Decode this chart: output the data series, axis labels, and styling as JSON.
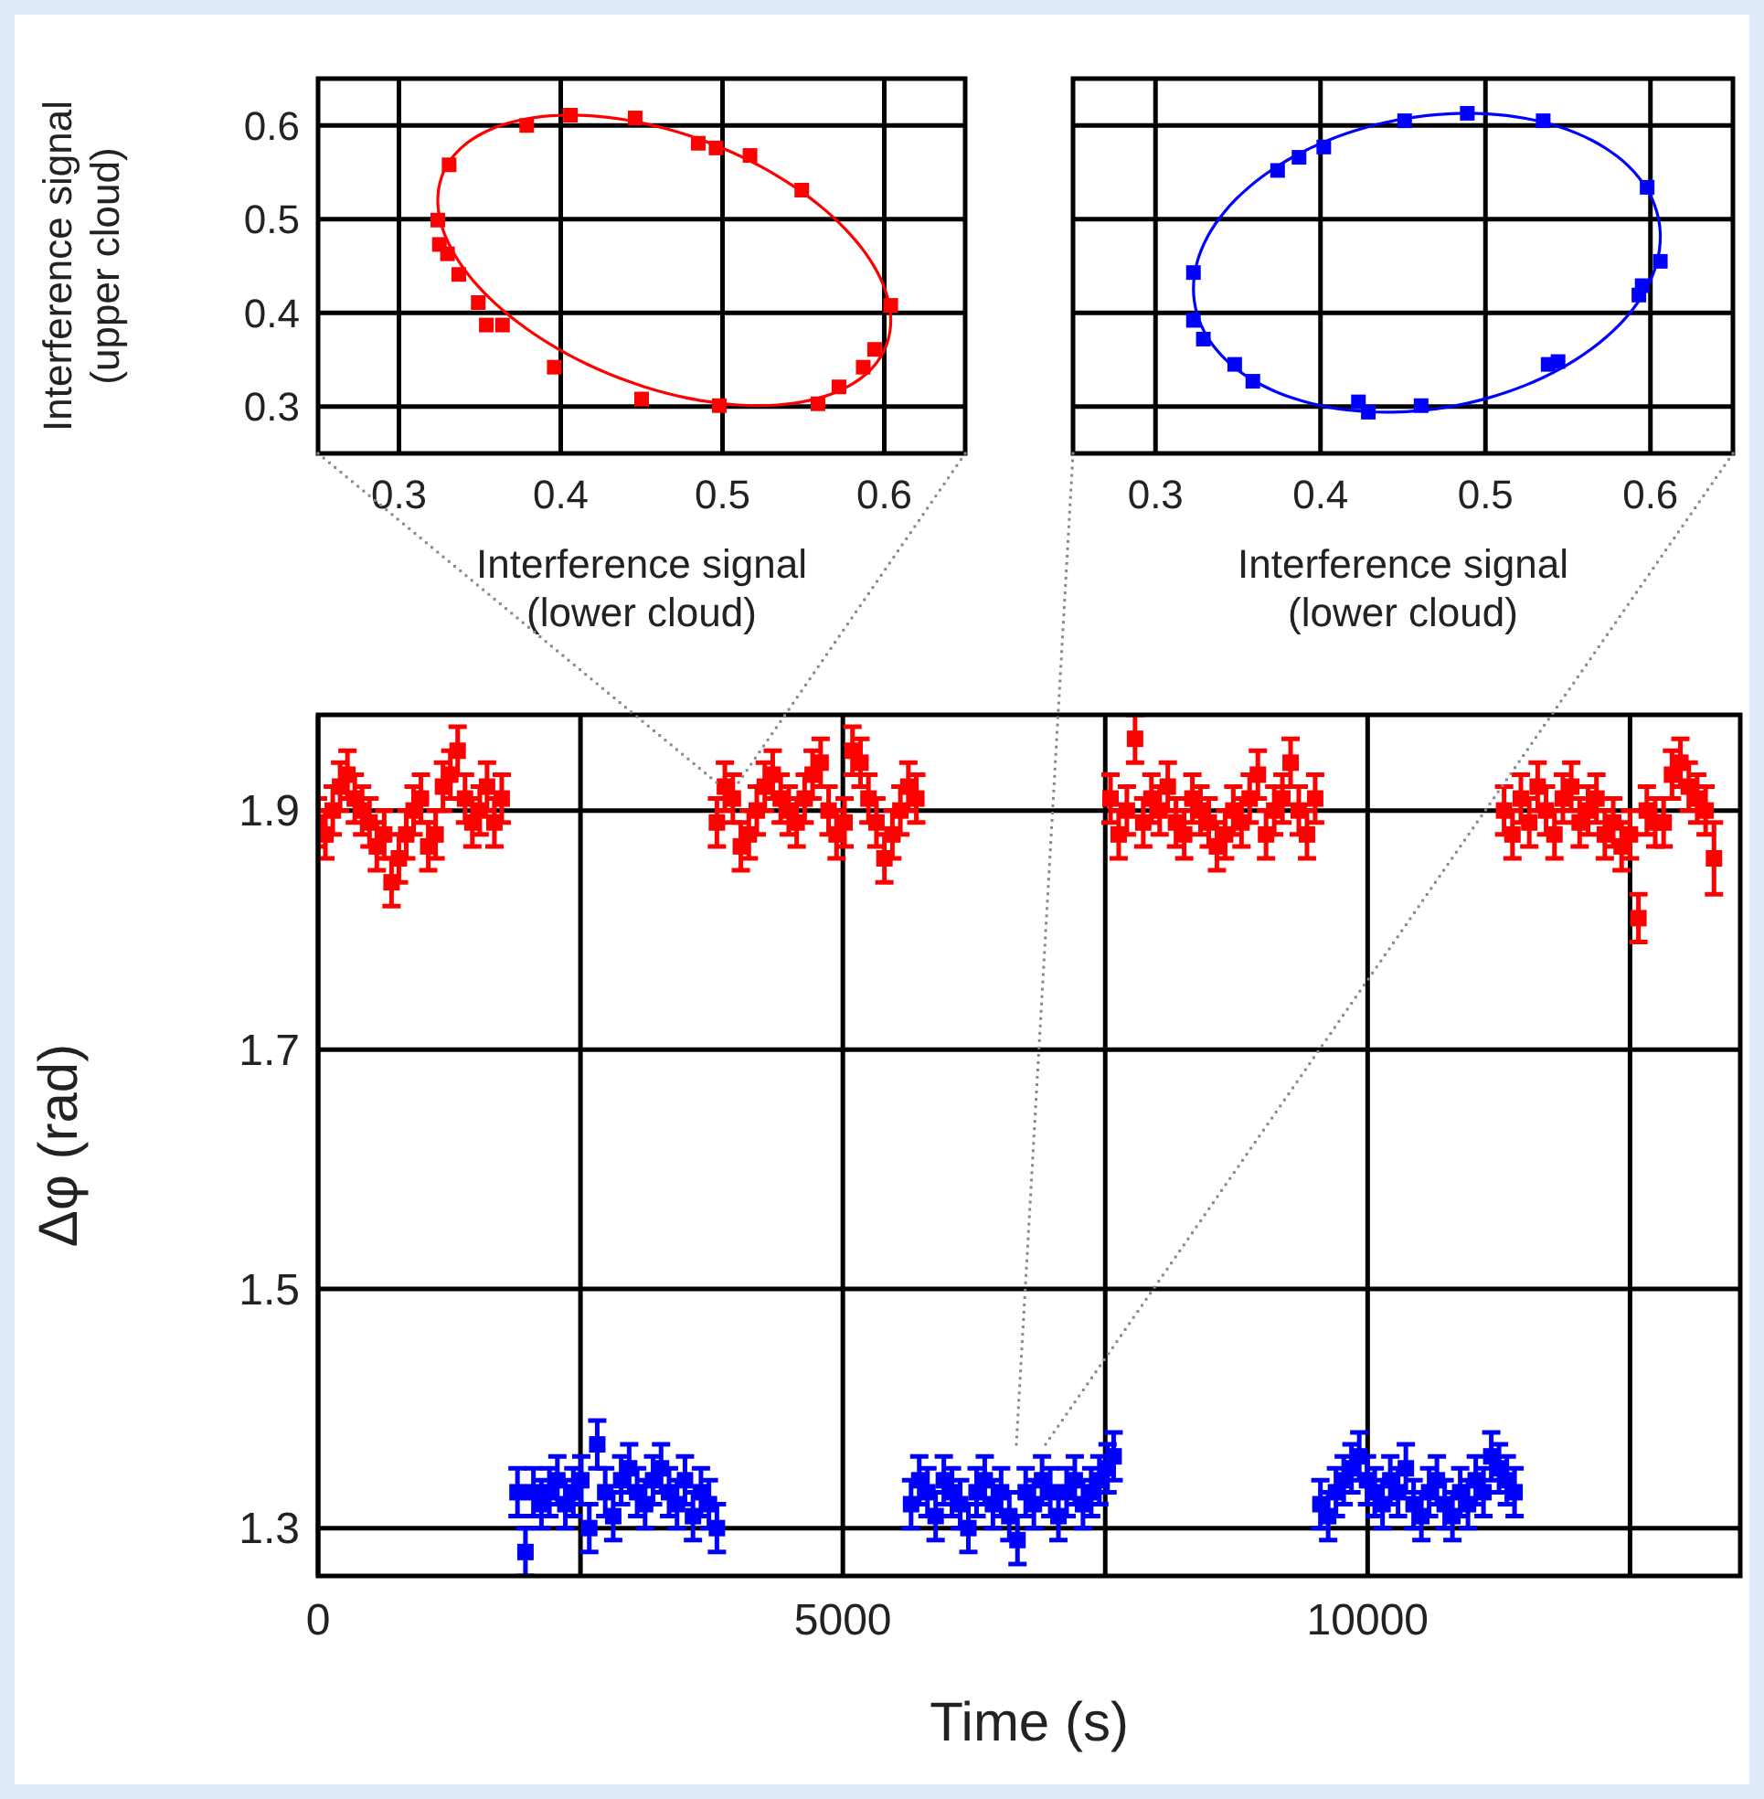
{
  "chart_data": [
    {
      "type": "scatter",
      "xlabel": "Interference signal\n(lower cloud)",
      "ylabel": "Interference signal\n(upper cloud)",
      "xlim": [
        0.25,
        0.65
      ],
      "ylim": [
        0.25,
        0.65
      ],
      "xticks": [
        0.3,
        0.4,
        0.5,
        0.6
      ],
      "yticks": [
        0.3,
        0.4,
        0.5,
        0.6
      ],
      "grid": true,
      "series": [
        {
          "type": "scatter",
          "marker": "square",
          "color": "#ff0000",
          "x": [
            0.406,
            0.446,
            0.379,
            0.485,
            0.496,
            0.517,
            0.549,
            0.331,
            0.324,
            0.325,
            0.33,
            0.337,
            0.349,
            0.354,
            0.364,
            0.396,
            0.45,
            0.498,
            0.559,
            0.572,
            0.587,
            0.594,
            0.604
          ],
          "values": [
            0.611,
            0.608,
            0.6,
            0.581,
            0.576,
            0.568,
            0.531,
            0.558,
            0.499,
            0.473,
            0.463,
            0.441,
            0.411,
            0.387,
            0.387,
            0.342,
            0.308,
            0.301,
            0.303,
            0.321,
            0.342,
            0.361,
            0.408
          ]
        }
      ]
    },
    {
      "type": "scatter",
      "xlabel": "Interference signal\n(lower cloud)",
      "xlim": [
        0.25,
        0.65
      ],
      "ylim": [
        0.25,
        0.65
      ],
      "xticks": [
        0.3,
        0.4,
        0.5,
        0.6
      ],
      "yticks": [
        0.3,
        0.4,
        0.5,
        0.6
      ],
      "grid": true,
      "tick_labels": "x",
      "series": [
        {
          "type": "scatter",
          "marker": "square",
          "color": "#0000ff",
          "x": [
            0.489,
            0.451,
            0.535,
            0.402,
            0.387,
            0.374,
            0.598,
            0.606,
            0.595,
            0.593,
            0.323,
            0.323,
            0.329,
            0.348,
            0.359,
            0.423,
            0.429,
            0.461,
            0.538,
            0.544
          ],
          "values": [
            0.613,
            0.605,
            0.605,
            0.577,
            0.566,
            0.552,
            0.534,
            0.455,
            0.429,
            0.419,
            0.443,
            0.392,
            0.372,
            0.345,
            0.327,
            0.305,
            0.294,
            0.301,
            0.345,
            0.348
          ]
        }
      ]
    },
    {
      "type": "scatter",
      "xlabel": "Time (s)",
      "ylabel": "Δφ (rad)",
      "xlim": [
        0,
        13550
      ],
      "ylim": [
        1.26,
        1.98
      ],
      "xticks": [
        0,
        {
          "value": 2500,
          "label": null
        },
        5000,
        {
          "value": 7500,
          "label": null
        },
        10000,
        {
          "value": 12500,
          "label": null
        }
      ],
      "yticks": [
        1.3,
        1.5,
        1.7,
        1.9
      ],
      "grid": true,
      "marker": "square",
      "series": [
        {
          "type": "scatter",
          "color": "#ff0000",
          "x": [
            0,
            70,
            140,
            210,
            280,
            350,
            420,
            490,
            560,
            630,
            700,
            770,
            840,
            910,
            980,
            1050,
            1120,
            1190,
            1260,
            1330,
            1400,
            1470,
            1540,
            1610,
            1680,
            1750,
            3800,
            3876,
            3952,
            4028,
            4104,
            4180,
            4256,
            4332,
            4408,
            4484,
            4560,
            4636,
            4712,
            4788,
            4864,
            4940,
            5016,
            5092,
            5168,
            5244,
            5320,
            5396,
            5472,
            5548,
            5624,
            5700,
            7550,
            7628,
            7706,
            7784,
            7862,
            7940,
            8018,
            8096,
            8174,
            8252,
            8330,
            8408,
            8486,
            8564,
            8642,
            8720,
            8798,
            8876,
            8954,
            9032,
            9110,
            9188,
            9266,
            9344,
            9422,
            9500,
            11300,
            11380,
            11460,
            11540,
            11620,
            11700,
            11780,
            11860,
            11940,
            12020,
            12100,
            12180,
            12260,
            12340,
            12420,
            12500,
            12580,
            12660,
            12740,
            12820,
            12900,
            12980,
            13060,
            13140,
            13220,
            13300
          ],
          "values": [
            1.89,
            1.88,
            1.9,
            1.92,
            1.93,
            1.91,
            1.9,
            1.89,
            1.87,
            1.88,
            1.84,
            1.86,
            1.88,
            1.9,
            1.91,
            1.87,
            1.88,
            1.92,
            1.93,
            1.95,
            1.91,
            1.89,
            1.9,
            1.92,
            1.89,
            1.91,
            1.89,
            1.92,
            1.91,
            1.87,
            1.88,
            1.9,
            1.92,
            1.93,
            1.91,
            1.9,
            1.89,
            1.91,
            1.93,
            1.94,
            1.9,
            1.88,
            1.89,
            1.95,
            1.94,
            1.91,
            1.89,
            1.86,
            1.88,
            1.9,
            1.92,
            1.91,
            1.91,
            1.88,
            1.9,
            1.96,
            1.89,
            1.91,
            1.9,
            1.92,
            1.89,
            1.88,
            1.91,
            1.9,
            1.89,
            1.87,
            1.88,
            1.9,
            1.89,
            1.91,
            1.93,
            1.88,
            1.9,
            1.91,
            1.94,
            1.9,
            1.88,
            1.91,
            1.9,
            1.88,
            1.91,
            1.89,
            1.92,
            1.9,
            1.88,
            1.91,
            1.92,
            1.89,
            1.9,
            1.91,
            1.88,
            1.89,
            1.87,
            1.88,
            1.81,
            1.9,
            1.89,
            1.89,
            1.93,
            1.94,
            1.92,
            1.91,
            1.9,
            1.86
          ],
          "errors": [
            0.02,
            0.02,
            0.02,
            0.02,
            0.02,
            0.02,
            0.02,
            0.02,
            0.02,
            0.02,
            0.02,
            0.02,
            0.02,
            0.02,
            0.02,
            0.02,
            0.02,
            0.02,
            0.02,
            0.02,
            0.02,
            0.02,
            0.02,
            0.02,
            0.02,
            0.02,
            0.02,
            0.02,
            0.02,
            0.02,
            0.02,
            0.02,
            0.02,
            0.02,
            0.02,
            0.02,
            0.02,
            0.02,
            0.02,
            0.02,
            0.02,
            0.02,
            0.02,
            0.02,
            0.02,
            0.02,
            0.02,
            0.02,
            0.02,
            0.02,
            0.02,
            0.02,
            0.02,
            0.02,
            0.02,
            0.02,
            0.02,
            0.02,
            0.02,
            0.02,
            0.02,
            0.02,
            0.02,
            0.02,
            0.02,
            0.02,
            0.02,
            0.02,
            0.02,
            0.02,
            0.02,
            0.02,
            0.02,
            0.02,
            0.02,
            0.02,
            0.02,
            0.02,
            0.02,
            0.02,
            0.02,
            0.02,
            0.02,
            0.02,
            0.02,
            0.02,
            0.02,
            0.02,
            0.02,
            0.02,
            0.02,
            0.02,
            0.02,
            0.02,
            0.02,
            0.02,
            0.02,
            0.02,
            0.02,
            0.02,
            0.02,
            0.02,
            0.02,
            0.03
          ]
        },
        {
          "type": "scatter",
          "color": "#0000ff",
          "x": [
            1900,
            1976,
            2052,
            2128,
            2204,
            2280,
            2356,
            2432,
            2508,
            2584,
            2660,
            2736,
            2812,
            2888,
            2964,
            3040,
            3116,
            3192,
            3268,
            3344,
            3420,
            3496,
            3572,
            3648,
            3724,
            3800,
            5650,
            5728,
            5806,
            5884,
            5962,
            6040,
            6118,
            6196,
            6274,
            6352,
            6430,
            6508,
            6586,
            6664,
            6742,
            6820,
            6898,
            6976,
            7054,
            7132,
            7210,
            7288,
            7366,
            7444,
            7522,
            7580,
            9550,
            9624,
            9698,
            9772,
            9846,
            9920,
            9994,
            10068,
            10142,
            10216,
            10290,
            10364,
            10438,
            10512,
            10586,
            10660,
            10734,
            10808,
            10882,
            10956,
            11030,
            11104,
            11178,
            11252,
            11326,
            11400
          ],
          "values": [
            1.33,
            1.28,
            1.33,
            1.32,
            1.33,
            1.34,
            1.32,
            1.33,
            1.34,
            1.3,
            1.37,
            1.33,
            1.31,
            1.34,
            1.35,
            1.33,
            1.32,
            1.34,
            1.35,
            1.33,
            1.32,
            1.34,
            1.31,
            1.33,
            1.32,
            1.3,
            1.32,
            1.34,
            1.33,
            1.31,
            1.34,
            1.33,
            1.32,
            1.3,
            1.33,
            1.34,
            1.32,
            1.33,
            1.31,
            1.29,
            1.33,
            1.32,
            1.34,
            1.33,
            1.31,
            1.33,
            1.34,
            1.32,
            1.33,
            1.34,
            1.35,
            1.36,
            1.32,
            1.31,
            1.33,
            1.34,
            1.35,
            1.36,
            1.34,
            1.33,
            1.32,
            1.34,
            1.33,
            1.35,
            1.32,
            1.31,
            1.33,
            1.34,
            1.32,
            1.31,
            1.33,
            1.32,
            1.34,
            1.33,
            1.36,
            1.35,
            1.34,
            1.33
          ],
          "errors": [
            0.02,
            0.02,
            0.02,
            0.02,
            0.02,
            0.02,
            0.02,
            0.02,
            0.02,
            0.02,
            0.02,
            0.02,
            0.02,
            0.02,
            0.02,
            0.02,
            0.02,
            0.02,
            0.02,
            0.02,
            0.02,
            0.02,
            0.02,
            0.02,
            0.02,
            0.02,
            0.02,
            0.02,
            0.02,
            0.02,
            0.02,
            0.02,
            0.02,
            0.02,
            0.02,
            0.02,
            0.02,
            0.02,
            0.02,
            0.02,
            0.02,
            0.02,
            0.02,
            0.02,
            0.02,
            0.02,
            0.02,
            0.02,
            0.02,
            0.02,
            0.02,
            0.02,
            0.02,
            0.02,
            0.02,
            0.02,
            0.02,
            0.02,
            0.02,
            0.02,
            0.02,
            0.02,
            0.02,
            0.02,
            0.02,
            0.02,
            0.02,
            0.02,
            0.02,
            0.02,
            0.02,
            0.02,
            0.02,
            0.02,
            0.02,
            0.02,
            0.02,
            0.02
          ]
        }
      ]
    }
  ]
}
